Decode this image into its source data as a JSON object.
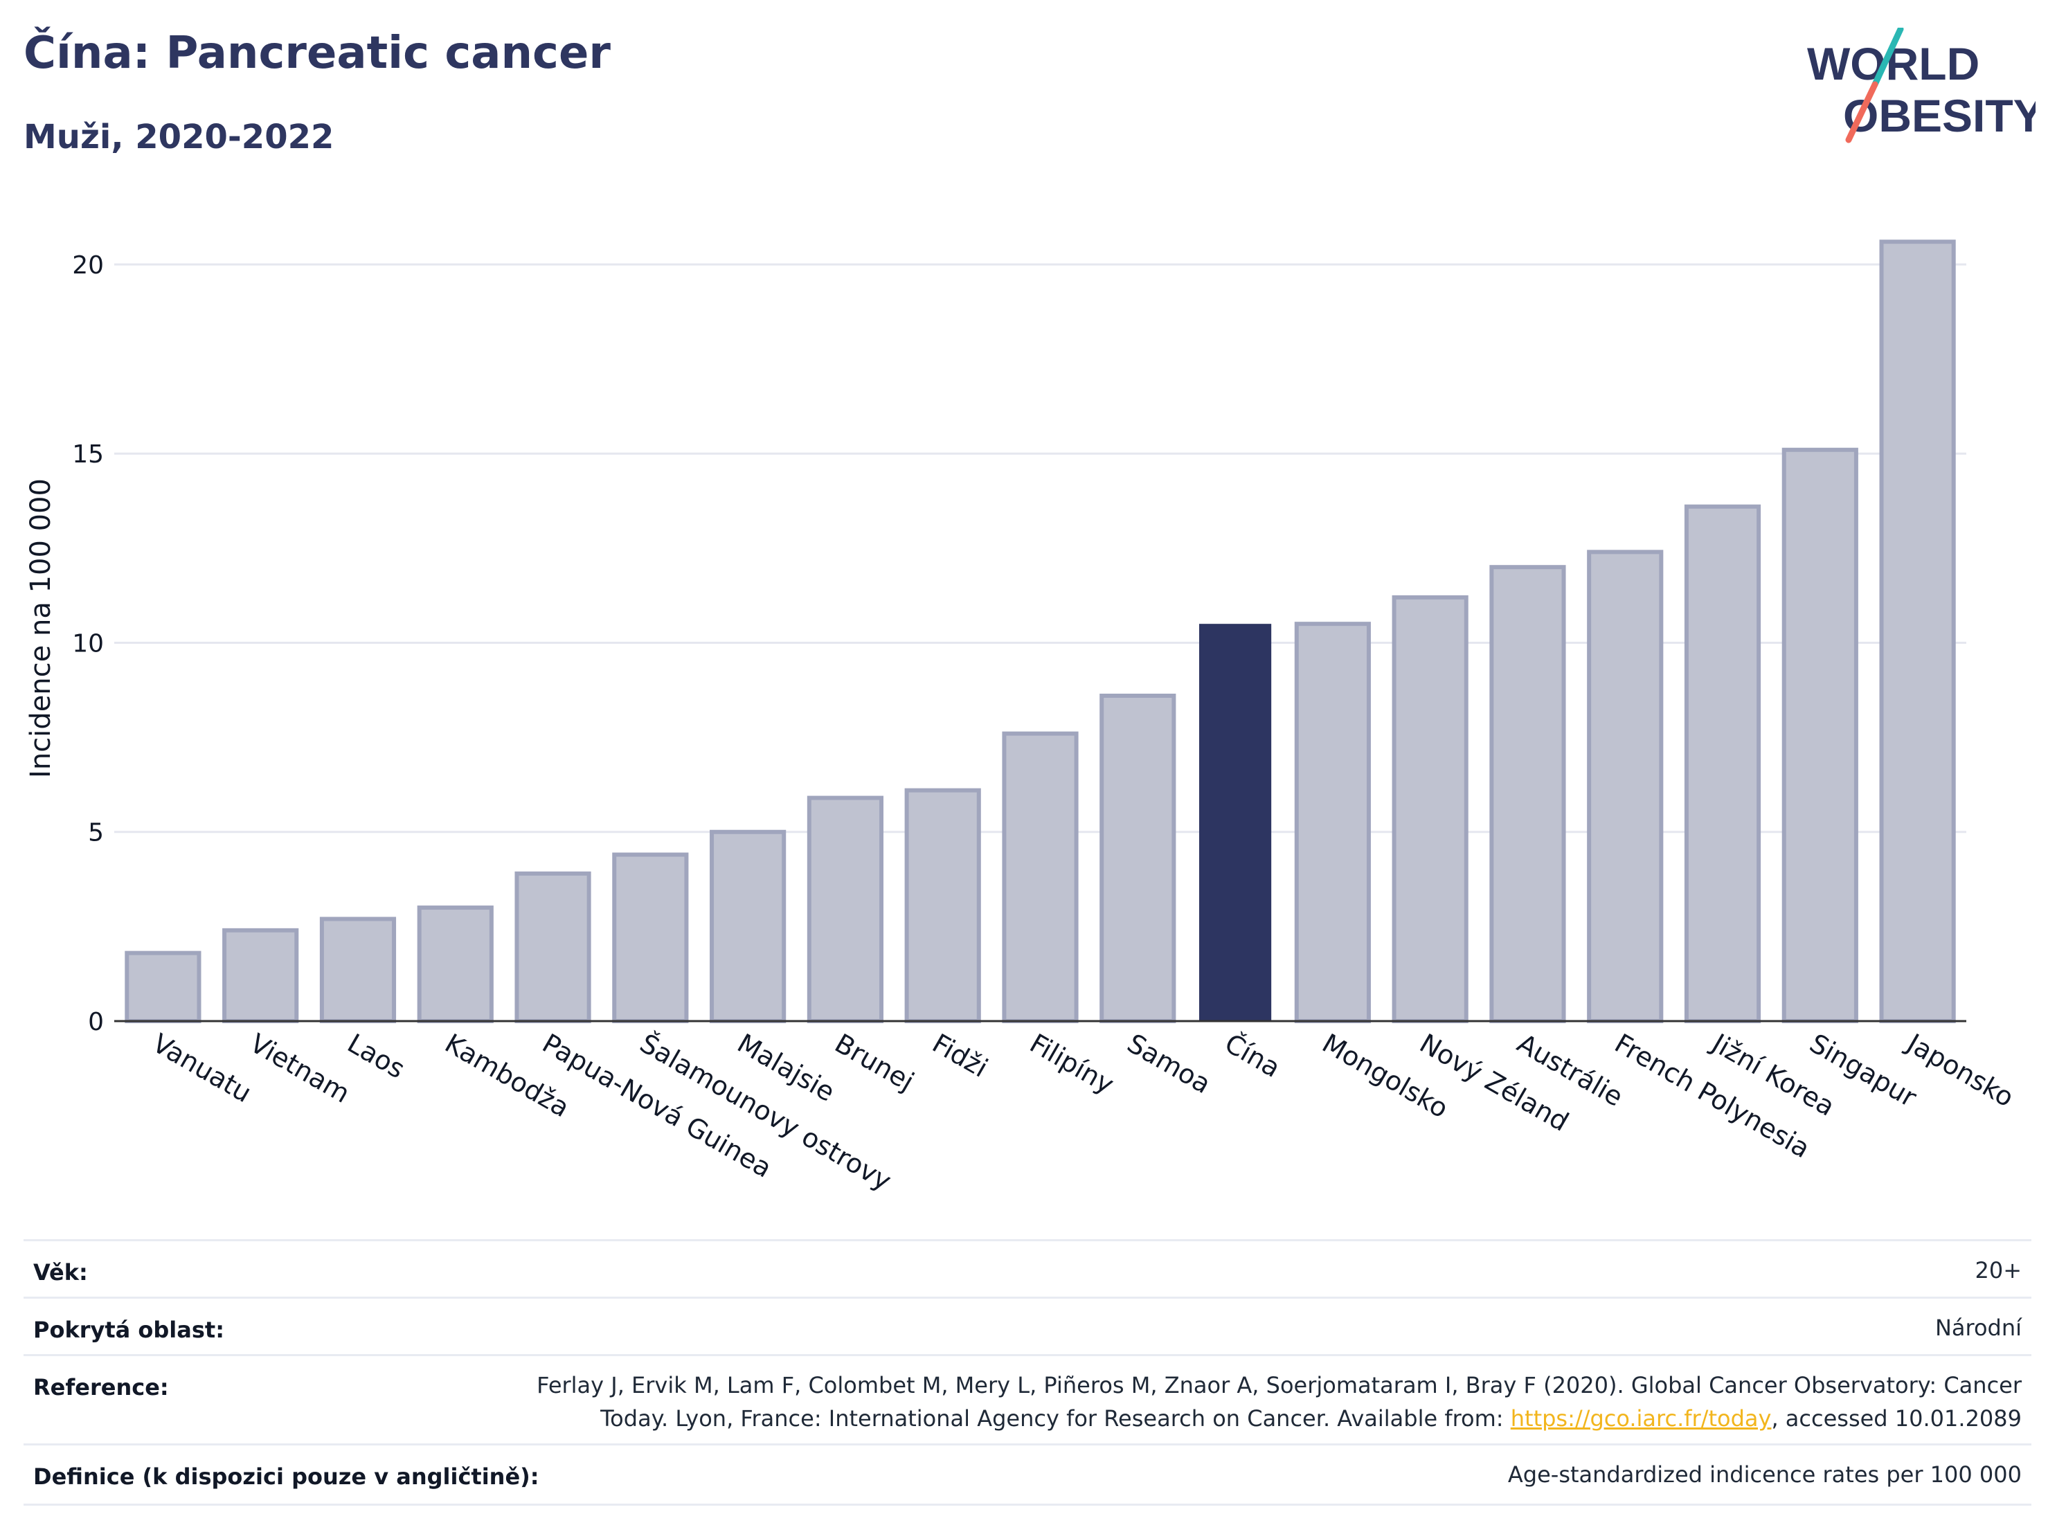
{
  "header": {
    "title": "Čína: Pancreatic cancer",
    "subtitle": "Muži, 2020-2022"
  },
  "logo": {
    "line1": "WORLD",
    "line2": "OBESITY"
  },
  "chart_data": {
    "type": "bar",
    "ylabel": "Incidence na 100 000",
    "ylim": [
      0,
      21.5
    ],
    "yticks": [
      0,
      5,
      10,
      15,
      20
    ],
    "grid": true,
    "highlight": "Čína",
    "colors": {
      "bar": "#bfc2d0",
      "bar_border": "#a0a5bd",
      "highlight": "#2d3561",
      "grid": "#e5e7ef",
      "axis": "#333333"
    },
    "categories": [
      "Vanuatu",
      "Vietnam",
      "Laos",
      "Kambodža",
      "Papua-Nová Guinea",
      "Šalamounovy ostrovy",
      "Malajsie",
      "Brunej",
      "Fidži",
      "Filipíny",
      "Samoa",
      "Čína",
      "Mongolsko",
      "Nový Zéland",
      "Austrálie",
      "French Polynesia",
      "Jižní Korea",
      "Singapur",
      "Japonsko"
    ],
    "values": [
      1.8,
      2.4,
      2.7,
      3.0,
      3.9,
      4.4,
      5.0,
      5.9,
      6.1,
      7.6,
      8.6,
      10.5,
      10.5,
      11.2,
      12.0,
      12.4,
      13.6,
      15.1,
      20.6
    ]
  },
  "details": {
    "age_label": "Věk:",
    "age_value": "20+",
    "coverage_label": "Pokrytá oblast:",
    "coverage_value": "Národní",
    "reference_label": "Reference:",
    "reference_line1": "Ferlay J, Ervik M, Lam F, Colombet M, Mery L, Piñeros M, Znaor A, Soerjomataram I, Bray F (2020). Global Cancer Observatory: Cancer",
    "reference_line2_pre": "Today. Lyon, France: International Agency for Research on Cancer. Available from: ",
    "reference_link": "https://gco.iarc.fr/today",
    "reference_line2_post": ", accessed 10.01.2089",
    "definition_label": "Definice (k dispozici pouze v angličtině):",
    "definition_value": "Age-standardized indicence rates per 100 000"
  }
}
